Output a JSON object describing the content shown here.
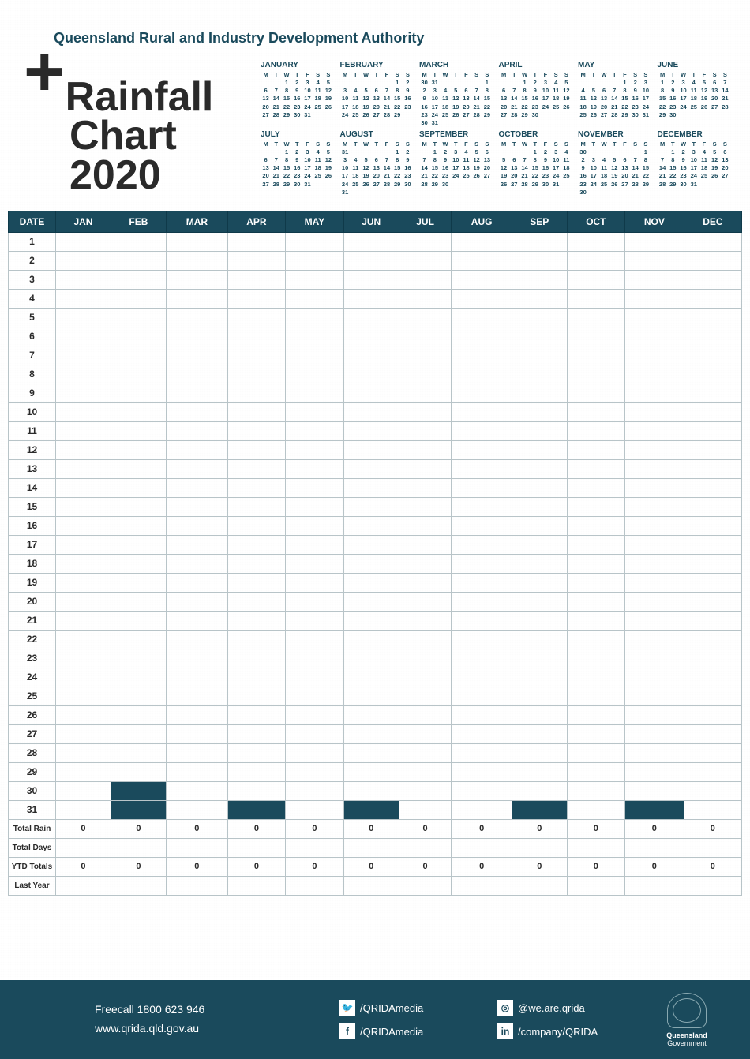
{
  "authority": "Queensland Rural and Industry Development Authority",
  "title": {
    "plus": "+",
    "line1": "Rainfall",
    "line2": "Chart 2020"
  },
  "colors": {
    "brand": "#1a4a5c",
    "text": "#2a2a2a",
    "border": "#b8c4c8",
    "white": "#ffffff"
  },
  "calendar": {
    "dow": [
      "M",
      "T",
      "W",
      "T",
      "F",
      "S",
      "S"
    ],
    "months": [
      {
        "name": "JANUARY",
        "start": 2,
        "days": 31
      },
      {
        "name": "FEBRUARY",
        "start": 5,
        "days": 29
      },
      {
        "name": "MARCH",
        "start": 6,
        "days": 31,
        "leadLabels": [
          "30",
          "31"
        ]
      },
      {
        "name": "APRIL",
        "start": 2,
        "days": 30
      },
      {
        "name": "MAY",
        "start": 4,
        "days": 31
      },
      {
        "name": "JUNE",
        "start": 0,
        "days": 30
      },
      {
        "name": "JULY",
        "start": 2,
        "days": 31
      },
      {
        "name": "AUGUST",
        "start": 5,
        "days": 31,
        "leadLabels": [
          "31"
        ]
      },
      {
        "name": "SEPTEMBER",
        "start": 1,
        "days": 30
      },
      {
        "name": "OCTOBER",
        "start": 3,
        "days": 31
      },
      {
        "name": "NOVEMBER",
        "start": 6,
        "days": 30,
        "leadLabels": [
          "30"
        ]
      },
      {
        "name": "DECEMBER",
        "start": 1,
        "days": 31
      }
    ]
  },
  "table": {
    "headers": [
      "DATE",
      "JAN",
      "FEB",
      "MAR",
      "APR",
      "MAY",
      "JUN",
      "JUL",
      "AUG",
      "SEP",
      "OCT",
      "NOV",
      "DEC"
    ],
    "days": 31,
    "blockOutCells": {
      "30": [
        2
      ],
      "31": [
        2,
        4,
        6,
        9,
        11
      ]
    },
    "summaryRows": [
      {
        "label": "Total Rain",
        "values": [
          "0",
          "0",
          "0",
          "0",
          "0",
          "0",
          "0",
          "0",
          "0",
          "0",
          "0",
          "0"
        ]
      },
      {
        "label": "Total Days",
        "values": [
          "",
          "",
          "",
          "",
          "",
          "",
          "",
          "",
          "",
          "",
          "",
          ""
        ]
      },
      {
        "label": "YTD Totals",
        "values": [
          "0",
          "0",
          "0",
          "0",
          "0",
          "0",
          "0",
          "0",
          "0",
          "0",
          "0",
          "0"
        ]
      },
      {
        "label": "Last Year",
        "values": [
          "",
          "",
          "",
          "",
          "",
          "",
          "",
          "",
          "",
          "",
          "",
          ""
        ]
      }
    ]
  },
  "footer": {
    "phone": "Freecall 1800 623 946",
    "url": "www.qrida.qld.gov.au",
    "socials": [
      {
        "icon": "twitter",
        "glyph": "🐦",
        "text": "/QRIDAmedia"
      },
      {
        "icon": "instagram",
        "glyph": "◎",
        "text": "@we.are.qrida"
      },
      {
        "icon": "facebook",
        "glyph": "f",
        "text": "/QRIDAmedia"
      },
      {
        "icon": "linkedin",
        "glyph": "in",
        "text": "/company/QRIDA"
      }
    ],
    "gov": {
      "line1": "Queensland",
      "line2": "Government"
    }
  }
}
